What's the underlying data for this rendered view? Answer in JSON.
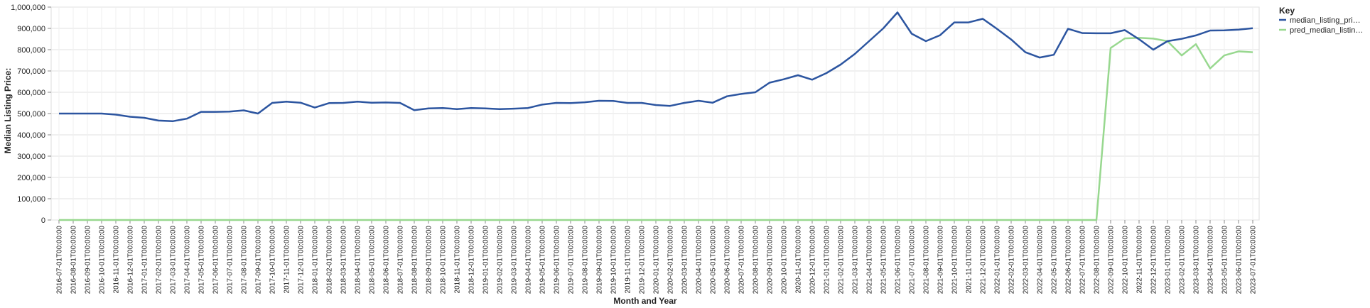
{
  "chart_data": {
    "type": "line",
    "xlabel": "Month and Year",
    "ylabel": "Median Listing Price:",
    "ylim": [
      0,
      1000000
    ],
    "yticks": [
      "0",
      "100,000",
      "200,000",
      "300,000",
      "400,000",
      "500,000",
      "600,000",
      "700,000",
      "800,000",
      "900,000",
      "1,000,000"
    ],
    "grid": true,
    "legend": {
      "title": "Key",
      "position": "top-right"
    },
    "x": [
      "2016-07-01T00:00:00",
      "2016-08-01T00:00:00",
      "2016-09-01T00:00:00",
      "2016-10-01T00:00:00",
      "2016-11-01T00:00:00",
      "2016-12-01T00:00:00",
      "2017-01-01T00:00:00",
      "2017-02-01T00:00:00",
      "2017-03-01T00:00:00",
      "2017-04-01T00:00:00",
      "2017-05-01T00:00:00",
      "2017-06-01T00:00:00",
      "2017-07-01T00:00:00",
      "2017-08-01T00:00:00",
      "2017-09-01T00:00:00",
      "2017-10-01T00:00:00",
      "2017-11-01T00:00:00",
      "2017-12-01T00:00:00",
      "2018-01-01T00:00:00",
      "2018-02-01T00:00:00",
      "2018-03-01T00:00:00",
      "2018-04-01T00:00:00",
      "2018-05-01T00:00:00",
      "2018-06-01T00:00:00",
      "2018-07-01T00:00:00",
      "2018-08-01T00:00:00",
      "2018-09-01T00:00:00",
      "2018-10-01T00:00:00",
      "2018-11-01T00:00:00",
      "2018-12-01T00:00:00",
      "2019-01-01T00:00:00",
      "2019-02-01T00:00:00",
      "2019-03-01T00:00:00",
      "2019-04-01T00:00:00",
      "2019-05-01T00:00:00",
      "2019-06-01T00:00:00",
      "2019-07-01T00:00:00",
      "2019-08-01T00:00:00",
      "2019-09-01T00:00:00",
      "2019-10-01T00:00:00",
      "2019-11-01T00:00:00",
      "2019-12-01T00:00:00",
      "2020-01-01T00:00:00",
      "2020-02-01T00:00:00",
      "2020-03-01T00:00:00",
      "2020-04-01T00:00:00",
      "2020-05-01T00:00:00",
      "2020-06-01T00:00:00",
      "2020-07-01T00:00:00",
      "2020-08-01T00:00:00",
      "2020-09-01T00:00:00",
      "2020-10-01T00:00:00",
      "2020-11-01T00:00:00",
      "2020-12-01T00:00:00",
      "2021-01-01T00:00:00",
      "2021-02-01T00:00:00",
      "2021-03-01T00:00:00",
      "2021-04-01T00:00:00",
      "2021-05-01T00:00:00",
      "2021-06-01T00:00:00",
      "2021-07-01T00:00:00",
      "2021-08-01T00:00:00",
      "2021-09-01T00:00:00",
      "2021-10-01T00:00:00",
      "2021-11-01T00:00:00",
      "2021-12-01T00:00:00",
      "2022-01-01T00:00:00",
      "2022-02-01T00:00:00",
      "2022-03-01T00:00:00",
      "2022-04-01T00:00:00",
      "2022-05-01T00:00:00",
      "2022-06-01T00:00:00",
      "2022-07-01T00:00:00",
      "2022-08-01T00:00:00",
      "2022-09-01T00:00:00",
      "2022-10-01T00:00:00",
      "2022-11-01T00:00:00",
      "2022-12-01T00:00:00",
      "2023-01-01T00:00:00",
      "2023-02-01T00:00:00",
      "2023-03-01T00:00:00",
      "2023-04-01T00:00:00",
      "2023-05-01T00:00:00",
      "2023-06-01T00:00:00",
      "2023-07-01T00:00:00"
    ],
    "series": [
      {
        "name": "median_listing_pri…",
        "color": "#2c55a0",
        "values": [
          500000,
          500000,
          500000,
          500000,
          495000,
          485000,
          480000,
          467000,
          464000,
          476000,
          508000,
          508000,
          509000,
          515000,
          500000,
          550000,
          556000,
          551000,
          528000,
          549000,
          550000,
          556000,
          551000,
          552000,
          550000,
          516000,
          524000,
          526000,
          521000,
          526000,
          524000,
          521000,
          523000,
          526000,
          542000,
          550000,
          549000,
          553000,
          560000,
          559000,
          550000,
          550000,
          540000,
          536000,
          550000,
          560000,
          551000,
          581000,
          592000,
          600000,
          645000,
          661000,
          680000,
          659000,
          690000,
          730000,
          780000,
          840000,
          900000,
          975000,
          875000,
          840000,
          868000,
          928000,
          928000,
          945000,
          898000,
          848000,
          788000,
          763000,
          776000,
          898000,
          878000,
          877000,
          877000,
          892000,
          849000,
          800000,
          840000,
          851000,
          867000,
          890000,
          891000,
          894000,
          901000
        ]
      },
      {
        "name": "pred_median_listin…",
        "color": "#98d88f",
        "values": [
          0,
          0,
          0,
          0,
          0,
          0,
          0,
          0,
          0,
          0,
          0,
          0,
          0,
          0,
          0,
          0,
          0,
          0,
          0,
          0,
          0,
          0,
          0,
          0,
          0,
          0,
          0,
          0,
          0,
          0,
          0,
          0,
          0,
          0,
          0,
          0,
          0,
          0,
          0,
          0,
          0,
          0,
          0,
          0,
          0,
          0,
          0,
          0,
          0,
          0,
          0,
          0,
          0,
          0,
          0,
          0,
          0,
          0,
          0,
          0,
          0,
          0,
          0,
          0,
          0,
          0,
          0,
          0,
          0,
          0,
          0,
          0,
          0,
          0,
          808000,
          853000,
          856000,
          852000,
          840000,
          773000,
          826000,
          712000,
          773000,
          792000,
          788000
        ]
      }
    ]
  }
}
